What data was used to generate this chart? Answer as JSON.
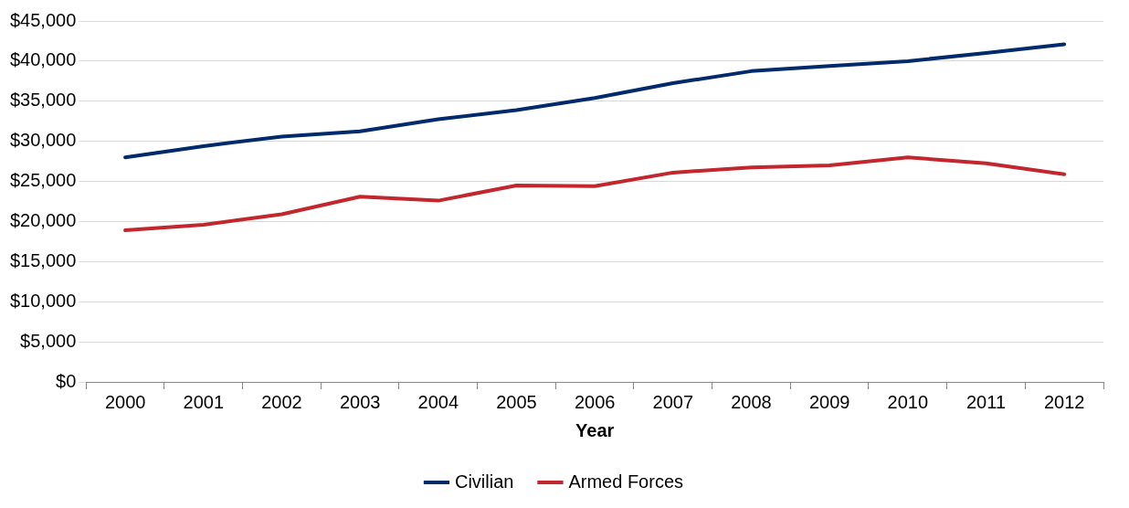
{
  "chart_data": {
    "type": "line",
    "xlabel": "Year",
    "categories": [
      "2000",
      "2001",
      "2002",
      "2003",
      "2004",
      "2005",
      "2006",
      "2007",
      "2008",
      "2009",
      "2010",
      "2011",
      "2012"
    ],
    "series": [
      {
        "name": "Civilian",
        "color": "#002a6c",
        "values": [
          28000,
          29400,
          30600,
          31250,
          32750,
          33900,
          35400,
          37250,
          38750,
          39400,
          40000,
          41000,
          42100
        ]
      },
      {
        "name": "Armed Forces",
        "color": "#c1272d",
        "values": [
          18900,
          19600,
          20900,
          23100,
          22600,
          24500,
          24400,
          26100,
          26750,
          27000,
          28000,
          27250,
          25900
        ]
      }
    ],
    "ylim": [
      0,
      45000
    ],
    "yticks": [
      {
        "value": 0,
        "label": "$0"
      },
      {
        "value": 5000,
        "label": "$5,000"
      },
      {
        "value": 10000,
        "label": "$10,000"
      },
      {
        "value": 15000,
        "label": "$15,000"
      },
      {
        "value": 20000,
        "label": "$20,000"
      },
      {
        "value": 25000,
        "label": "$25,000"
      },
      {
        "value": 30000,
        "label": "$30,000"
      },
      {
        "value": 35000,
        "label": "$35,000"
      },
      {
        "value": 40000,
        "label": "$40,000"
      },
      {
        "value": 45000,
        "label": "$45,000"
      }
    ],
    "grid": "y",
    "legend": "bottom",
    "marker": "none",
    "line_style": "solid"
  }
}
